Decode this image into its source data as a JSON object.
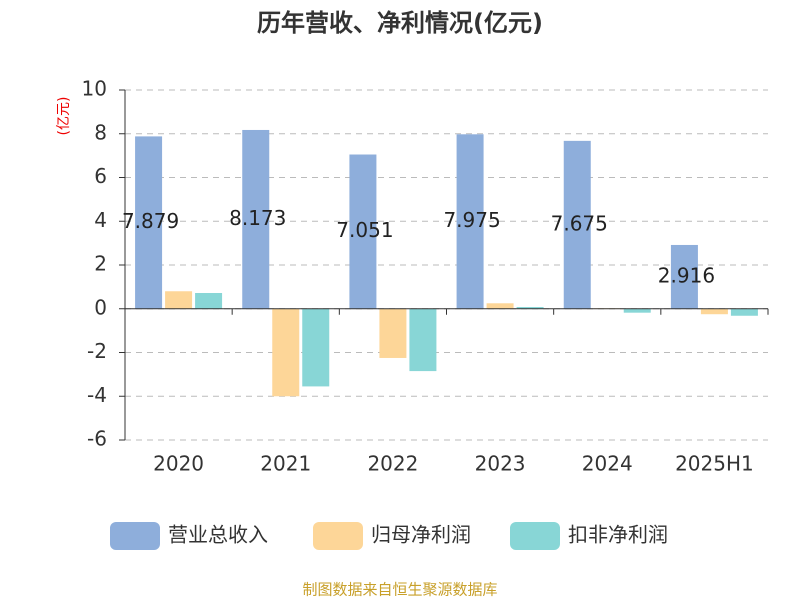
{
  "chart_data": {
    "type": "bar",
    "title": "历年营收、净利情况(亿元)",
    "y_label": "(亿元)",
    "categories": [
      "2020",
      "2021",
      "2022",
      "2023",
      "2024",
      "2025H1"
    ],
    "series": [
      {
        "name": "营业总收入",
        "color": "#8eaedb",
        "values": [
          7.879,
          8.173,
          7.051,
          7.975,
          7.675,
          2.916
        ],
        "show_labels": true
      },
      {
        "name": "归母净利润",
        "color": "#fdd698",
        "values": [
          0.8,
          -4.0,
          -2.25,
          0.25,
          0.02,
          -0.25
        ]
      },
      {
        "name": "扣非净利润",
        "color": "#88d6d6",
        "values": [
          0.72,
          -3.55,
          -2.85,
          0.08,
          -0.18,
          -0.32
        ]
      }
    ],
    "ylim": [
      -6,
      10
    ],
    "yticks": [
      -6,
      -4,
      -2,
      0,
      2,
      4,
      6,
      8,
      10
    ],
    "grid": true,
    "source": "制图数据来自恒生聚源数据库"
  }
}
